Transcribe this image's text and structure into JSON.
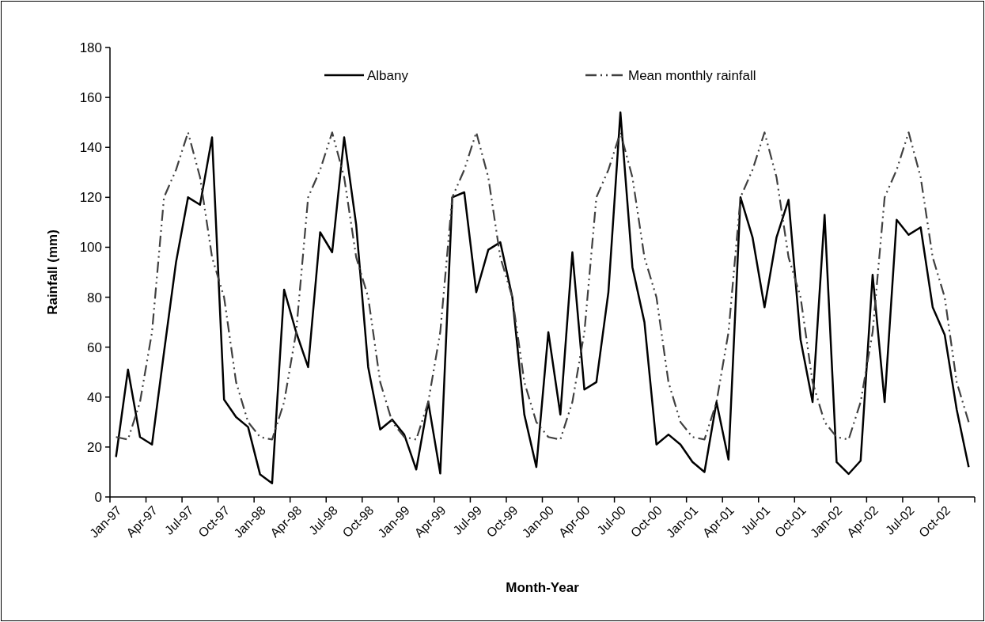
{
  "chart_data": {
    "type": "line",
    "xlabel": "Month-Year",
    "ylabel": "Rainfall (mm)",
    "categories": [
      "Jan-97",
      null,
      null,
      "Apr-97",
      null,
      null,
      "Jul-97",
      null,
      null,
      "Oct-97",
      null,
      null,
      "Jan-98",
      null,
      null,
      "Apr-98",
      null,
      null,
      "Jul-98",
      null,
      null,
      "Oct-98",
      null,
      null,
      "Jan-99",
      null,
      null,
      "Apr-99",
      null,
      null,
      "Jul-99",
      null,
      null,
      "Oct-99",
      null,
      null,
      "Jan-00",
      null,
      null,
      "Apr-00",
      null,
      null,
      "Jul-00",
      null,
      null,
      "Oct-00",
      null,
      null,
      "Jan-01",
      null,
      null,
      "Apr-01",
      null,
      null,
      "Jul-01",
      null,
      null,
      "Oct-01",
      null,
      null,
      "Jan-02",
      null,
      null,
      "Apr-02",
      null,
      null,
      "Jul-02",
      null,
      null,
      "Oct-02",
      null,
      null
    ],
    "series": [
      {
        "name": "Albany",
        "color": "#000000",
        "line_style": "solid",
        "values": [
          16,
          51,
          24,
          21,
          58,
          94,
          120,
          117,
          144,
          39,
          32,
          28,
          9,
          5.5,
          83,
          66,
          52,
          106,
          98,
          144,
          109,
          52,
          27,
          31,
          25,
          11,
          38,
          9.4,
          120,
          122,
          82,
          99,
          102,
          80,
          33,
          12,
          66,
          33,
          98,
          43,
          46,
          82,
          154,
          92,
          70,
          21,
          25,
          21,
          14,
          10,
          38,
          15,
          120,
          104,
          76,
          104,
          119,
          63,
          38,
          113,
          14,
          9.2,
          14.5,
          89,
          38,
          111,
          105,
          108,
          76,
          65,
          35,
          12
        ]
      },
      {
        "name": "Mean monthly rainfall",
        "color": "#404040",
        "line_style": "dashdotdot",
        "values": [
          24,
          23,
          38,
          66,
          120,
          131,
          146,
          128,
          96,
          80,
          46,
          30,
          24,
          23,
          38,
          66,
          120,
          131,
          146,
          128,
          96,
          80,
          46,
          30,
          24,
          23,
          38,
          66,
          120,
          131,
          146,
          128,
          96,
          80,
          46,
          30,
          24,
          23,
          38,
          66,
          120,
          131,
          146,
          128,
          96,
          80,
          46,
          30,
          24,
          23,
          38,
          66,
          120,
          131,
          146,
          128,
          96,
          80,
          46,
          30,
          24,
          23,
          38,
          66,
          120,
          131,
          146,
          128,
          96,
          80,
          46,
          30
        ]
      }
    ],
    "ylim": [
      0,
      180
    ],
    "yticks": [
      0,
      20,
      40,
      60,
      80,
      100,
      120,
      140,
      160,
      180
    ],
    "grid": false,
    "legend": "top",
    "marker": "none"
  }
}
